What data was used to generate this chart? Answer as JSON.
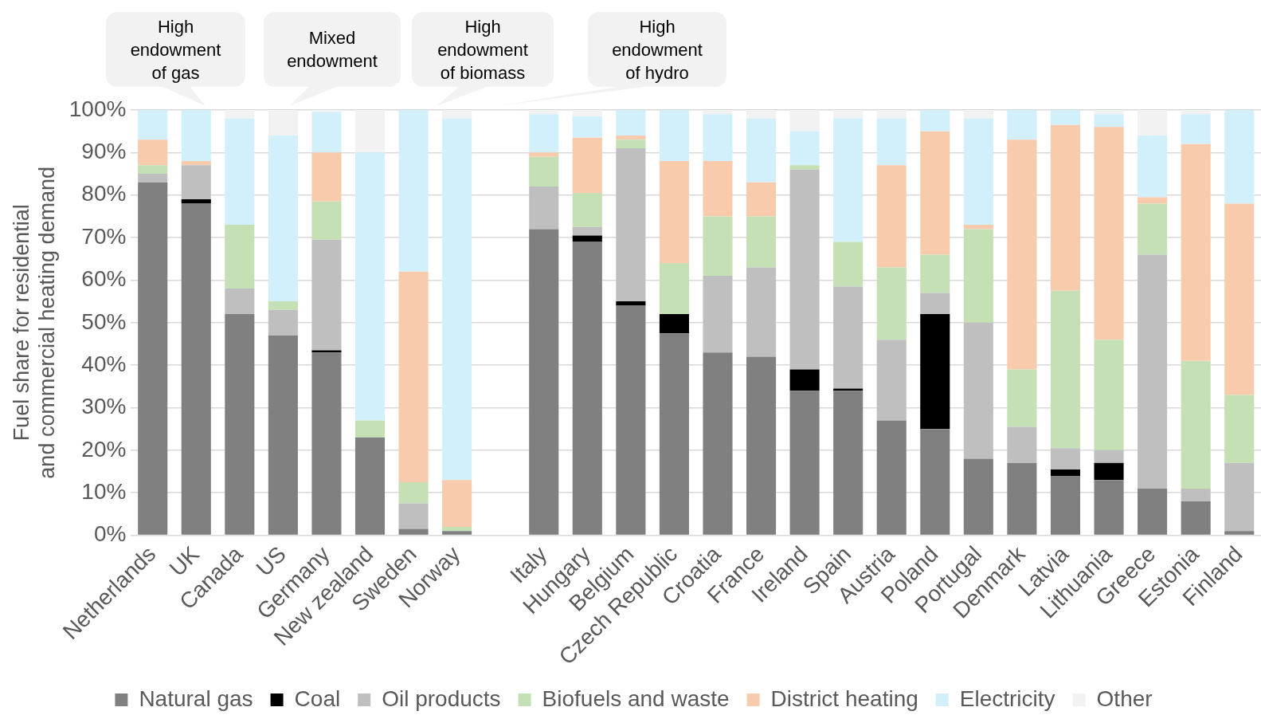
{
  "chart_data": {
    "type": "bar",
    "stacked": true,
    "ylabel": "Fuel share for residential and commercial heating demand",
    "categories": [
      "Netherlands",
      "UK",
      "Canada",
      "US",
      "Germany",
      "New zealand",
      "Sweden",
      "Norway",
      null,
      "Italy",
      "Hungary",
      "Belgium",
      "Czech Republic",
      "Croatia",
      "France",
      "Ireland",
      "Spain",
      "Austria",
      "Poland",
      "Portugal",
      "Denmark",
      "Latvia",
      "Lithuania",
      "Greece",
      "Estonia",
      "Finland"
    ],
    "series": [
      {
        "name": "Natural gas",
        "color": "#808080",
        "values": [
          83,
          78,
          52,
          47,
          43,
          23,
          1.5,
          1,
          null,
          72,
          69,
          54,
          47.5,
          43,
          42,
          34,
          34,
          27,
          25,
          18,
          17,
          14,
          13,
          11,
          8,
          1
        ]
      },
      {
        "name": "Coal",
        "color": "#000000",
        "values": [
          0,
          1,
          0,
          0,
          0.5,
          0,
          0,
          0,
          null,
          0,
          1.5,
          1,
          4.5,
          0,
          0,
          5,
          0.5,
          0,
          27,
          0,
          0,
          1.5,
          4,
          0,
          0,
          0
        ]
      },
      {
        "name": "Oil products",
        "color": "#bfbfbf",
        "values": [
          2,
          8,
          6,
          6,
          26,
          0,
          6,
          0,
          null,
          10,
          2,
          36,
          0,
          18,
          21,
          47,
          24,
          19,
          5,
          32,
          8.5,
          5,
          3,
          55,
          3,
          16
        ]
      },
      {
        "name": "Biofuels and waste",
        "color": "#c5e0b4",
        "values": [
          2,
          0,
          15,
          2,
          9,
          4,
          5,
          1,
          null,
          7,
          8,
          2,
          12,
          14,
          12,
          1,
          10.5,
          17,
          9,
          22,
          13.5,
          37,
          26,
          12,
          30,
          16
        ]
      },
      {
        "name": "District heating",
        "color": "#f8cbad",
        "values": [
          6,
          1,
          0,
          0,
          11.5,
          0,
          49.5,
          11,
          null,
          1,
          13,
          1,
          24,
          13,
          8,
          0,
          0,
          24,
          29,
          1,
          54,
          39,
          50,
          1.5,
          51,
          45
        ]
      },
      {
        "name": "Electricity",
        "color": "#d2f0fb",
        "values": [
          7,
          12,
          25,
          39,
          9.5,
          63,
          38,
          85,
          null,
          9,
          5,
          6,
          12,
          11,
          15,
          8,
          29,
          11,
          5,
          25,
          7,
          3.5,
          3,
          14.5,
          7,
          22
        ]
      },
      {
        "name": "Other",
        "color": "#f2f2f2",
        "values": [
          0,
          0,
          2,
          6,
          0.5,
          10,
          0,
          2,
          null,
          1,
          1.5,
          0,
          0,
          1,
          2,
          5,
          2,
          2,
          0,
          2,
          0,
          0,
          1,
          6,
          1,
          0
        ]
      }
    ],
    "ylim": [
      0,
      100
    ],
    "yticks": [
      {
        "value": 0,
        "label": "0%"
      },
      {
        "value": 10,
        "label": "10%"
      },
      {
        "value": 20,
        "label": "20%"
      },
      {
        "value": 30,
        "label": "30%"
      },
      {
        "value": 40,
        "label": "40%"
      },
      {
        "value": 50,
        "label": "50%"
      },
      {
        "value": 60,
        "label": "60%"
      },
      {
        "value": 70,
        "label": "70%"
      },
      {
        "value": 80,
        "label": "80%"
      },
      {
        "value": 90,
        "label": "90%"
      },
      {
        "value": 100,
        "label": "100%"
      }
    ],
    "grid": "y",
    "legend": "bottom",
    "annotations": [
      "High endowment of gas",
      "Mixed endowment",
      "High endowment of biomass",
      "High endowment of hydro"
    ]
  }
}
